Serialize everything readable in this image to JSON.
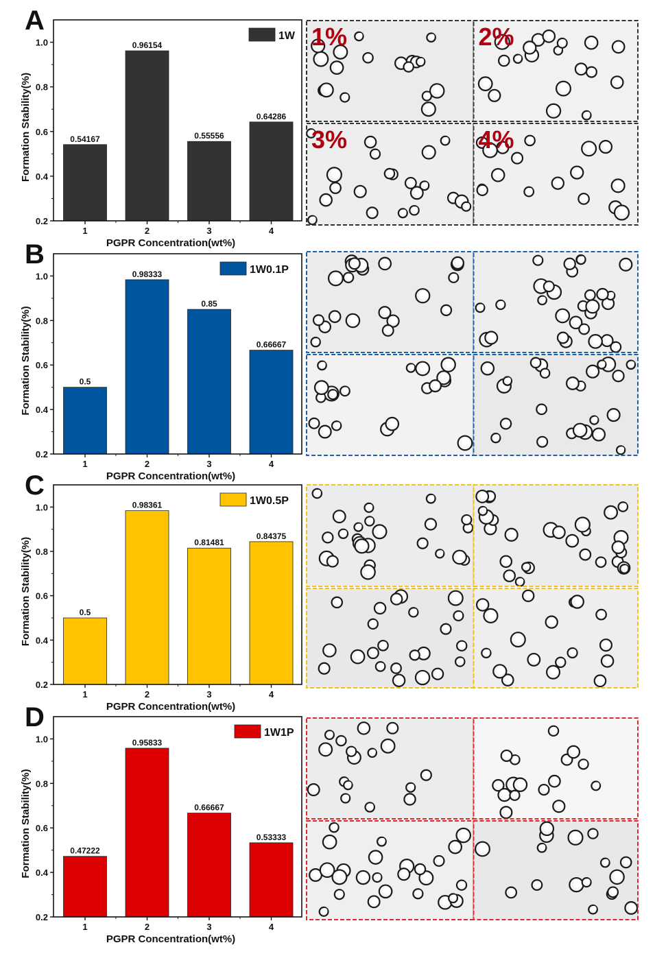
{
  "figure": {
    "panels": [
      "A",
      "B",
      "C",
      "D"
    ]
  },
  "chart_data": [
    {
      "type": "bar",
      "panel_label": "A",
      "legend": "1W",
      "legend_placement": "top-right",
      "color": "#333333",
      "categories": [
        "1",
        "2",
        "3",
        "4"
      ],
      "values": [
        0.54167,
        0.96154,
        0.55556,
        0.64286
      ],
      "value_labels": [
        "0.54167",
        "0.96154",
        "0.55556",
        "0.64286"
      ],
      "xlabel": "PGPR Concentration(wt%)",
      "ylabel": "Formation Stability(%)",
      "yticks": [
        "0.2",
        "0.4",
        "0.6",
        "0.8",
        "1.0"
      ],
      "ylim": [
        0.2,
        1.1
      ],
      "grid": false,
      "image_border_color": "#333333",
      "image_labels": [
        "1%",
        "2%",
        "3%",
        "4%"
      ]
    },
    {
      "type": "bar",
      "panel_label": "B",
      "legend": "1W0.1P",
      "legend_placement": "top-right",
      "color": "#00569e",
      "categories": [
        "1",
        "2",
        "3",
        "4"
      ],
      "values": [
        0.5,
        0.98333,
        0.85,
        0.66667
      ],
      "value_labels": [
        "0.5",
        "0.98333",
        "0.85",
        "0.66667"
      ],
      "xlabel": "PGPR Concentration(wt%)",
      "ylabel": "Formation Stability(%)",
      "yticks": [
        "0.2",
        "0.4",
        "0.6",
        "0.8",
        "1.0"
      ],
      "ylim": [
        0.2,
        1.1
      ],
      "grid": false,
      "image_border_color": "#1f5fa8",
      "image_labels": [
        "",
        "",
        "",
        ""
      ]
    },
    {
      "type": "bar",
      "panel_label": "C",
      "legend": "1W0.5P",
      "legend_placement": "top-right",
      "color": "#ffc300",
      "categories": [
        "1",
        "2",
        "3",
        "4"
      ],
      "values": [
        0.5,
        0.98361,
        0.81481,
        0.84375
      ],
      "value_labels": [
        "0.5",
        "0.98361",
        "0.81481",
        "0.84375"
      ],
      "xlabel": "PGPR Concentration(wt%)",
      "ylabel": "Formation Stability(%)",
      "yticks": [
        "0.2",
        "0.4",
        "0.6",
        "0.8",
        "1.0"
      ],
      "ylim": [
        0.2,
        1.1
      ],
      "grid": false,
      "image_border_color": "#f2c21a",
      "image_labels": [
        "",
        "",
        "",
        ""
      ]
    },
    {
      "type": "bar",
      "panel_label": "D",
      "legend": "1W1P",
      "legend_placement": "top-right",
      "color": "#dd0000",
      "categories": [
        "1",
        "2",
        "3",
        "4"
      ],
      "values": [
        0.47222,
        0.95833,
        0.66667,
        0.53333
      ],
      "value_labels": [
        "0.47222",
        "0.95833",
        "0.66667",
        "0.53333"
      ],
      "xlabel": "PGPR Concentration(wt%)",
      "ylabel": "Formation Stability(%)",
      "yticks": [
        "0.2",
        "0.4",
        "0.6",
        "0.8",
        "1.0"
      ],
      "ylim": [
        0.2,
        1.1
      ],
      "grid": false,
      "image_border_color": "#e0282a",
      "image_labels": [
        "",
        "",
        "",
        ""
      ]
    }
  ]
}
